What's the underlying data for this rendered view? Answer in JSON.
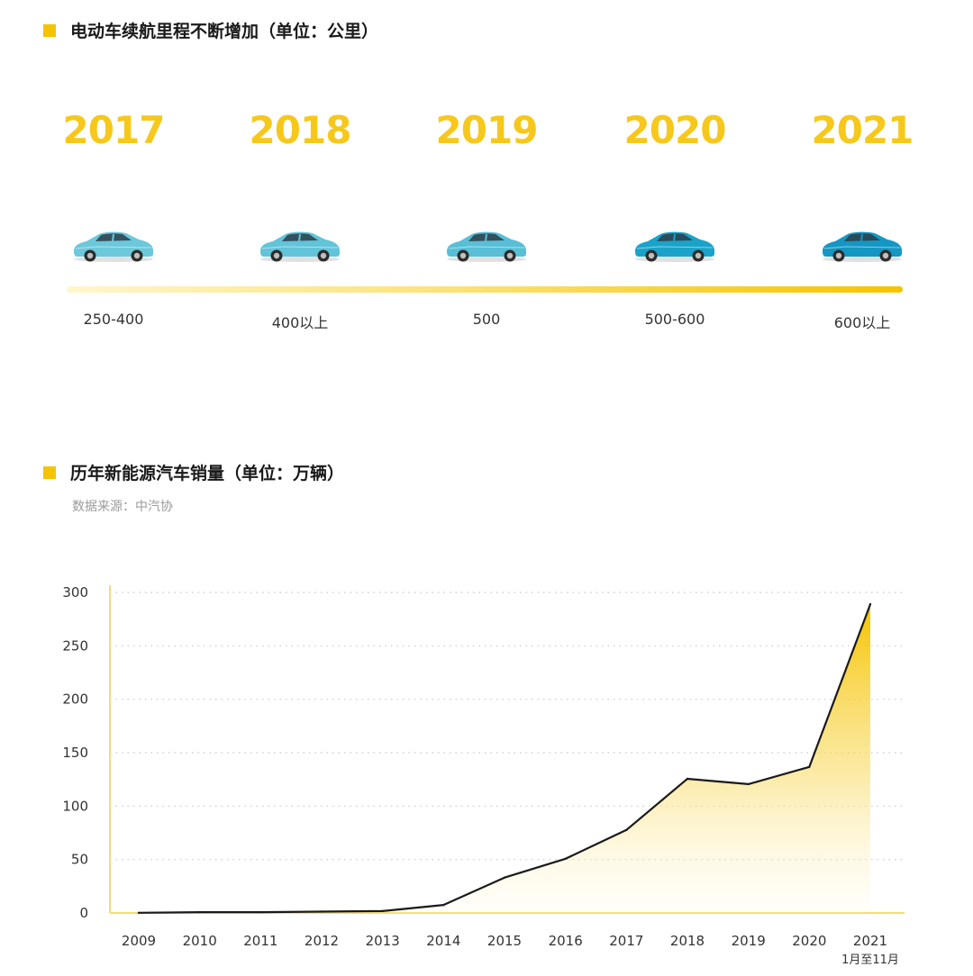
{
  "sections": {
    "range_title": "电动车续航里程不断增加（单位：公里）",
    "sales_title": "历年新能源汽车销量（单位：万辆）",
    "sales_source": "数据来源：中汽协"
  },
  "colors": {
    "accent": "#f5c400",
    "year_text": "#f7c81c",
    "car_2017_2019": "#5bc3d8",
    "car_2020_2021": "#16a0c8",
    "line": "#1a1a1a"
  },
  "timeline": [
    {
      "year": "2017",
      "range": "250-400",
      "car_color": "#6cc8db"
    },
    {
      "year": "2018",
      "range": "400以上",
      "car_color": "#62c4d9"
    },
    {
      "year": "2019",
      "range": "500",
      "car_color": "#58bfd6"
    },
    {
      "year": "2020",
      "range": "500-600",
      "car_color": "#1aa3c9"
    },
    {
      "year": "2021",
      "range": "600以上",
      "car_color": "#1597c4"
    }
  ],
  "chart_data": {
    "type": "area",
    "title": "历年新能源汽车销量（单位：万辆）",
    "categories": [
      "2009",
      "2010",
      "2011",
      "2012",
      "2013",
      "2014",
      "2015",
      "2016",
      "2017",
      "2018",
      "2019",
      "2020",
      "2021"
    ],
    "category_notes": {
      "2021": "1月至11月"
    },
    "values": [
      0.2,
      0.8,
      0.8,
      1.3,
      1.8,
      7.5,
      33.1,
      50.7,
      77.7,
      125.6,
      120.6,
      136.7,
      289.0
    ],
    "ylim": [
      0,
      300
    ],
    "yticks": [
      0,
      50,
      100,
      150,
      200,
      250,
      300
    ],
    "grid": "dotted horizontal"
  }
}
